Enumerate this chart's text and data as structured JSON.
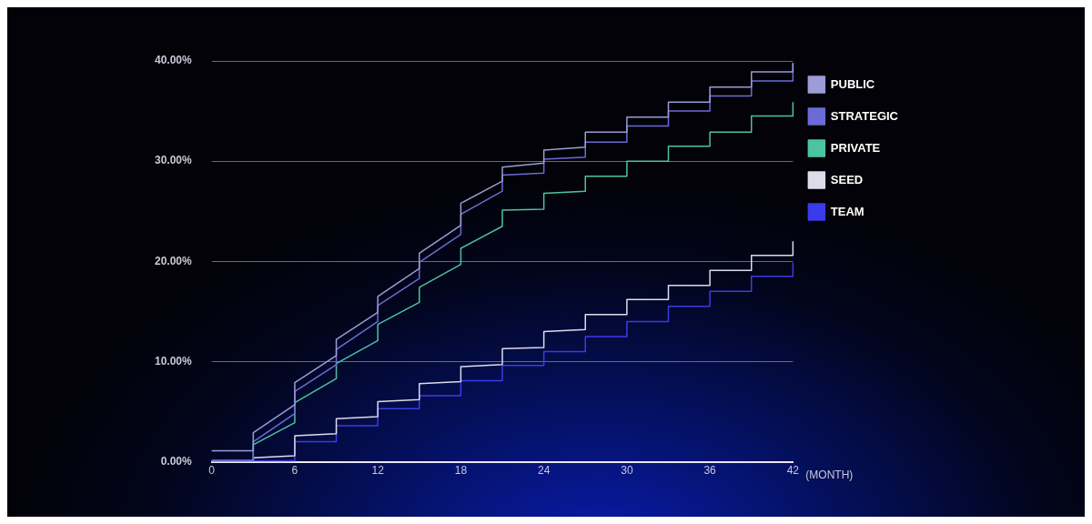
{
  "chart_data": {
    "type": "line",
    "xlabel": "(MONTH)",
    "xlim": [
      0,
      42
    ],
    "xticks": [
      0,
      6,
      12,
      18,
      24,
      30,
      36,
      42
    ],
    "ylim": [
      0,
      40
    ],
    "yticks": [
      {
        "value": 0,
        "label": "0.00%"
      },
      {
        "value": 10,
        "label": "10.00%"
      },
      {
        "value": 20,
        "label": "20.00%"
      },
      {
        "value": 30,
        "label": "30.00%"
      },
      {
        "value": 40,
        "label": "40.00%"
      }
    ],
    "grid": "y",
    "legend": "right",
    "marker": "none",
    "line_style": "solid",
    "series": [
      {
        "name": "PUBLIC",
        "color": "#9c9cd6",
        "x": [
          0,
          3,
          3,
          6,
          6,
          9,
          9,
          12,
          12,
          15,
          15,
          18,
          18,
          21,
          21,
          24,
          24,
          27,
          27,
          30,
          30,
          33,
          33,
          36,
          36,
          39,
          39,
          42,
          42
        ],
        "values": [
          1.1,
          1.1,
          2.9,
          5.7,
          7.9,
          10.6,
          12.2,
          14.9,
          16.5,
          19.3,
          20.8,
          23.6,
          25.8,
          28,
          29.4,
          29.8,
          31.1,
          31.4,
          32.9,
          32.9,
          34.4,
          34.4,
          35.9,
          35.9,
          37.4,
          37.4,
          38.9,
          38.9,
          39.8
        ]
      },
      {
        "name": "STRATEGIC",
        "color": "#6b6bd8",
        "x": [
          0,
          3,
          3,
          6,
          6,
          9,
          9,
          12,
          12,
          15,
          15,
          18,
          18,
          21,
          21,
          24,
          24,
          27,
          27,
          30,
          30,
          33,
          33,
          36,
          36,
          39,
          39,
          42,
          42
        ],
        "values": [
          0.1,
          0.1,
          2,
          4.8,
          7,
          9.7,
          11.2,
          14,
          15.6,
          18.3,
          19.9,
          22.7,
          24.7,
          27,
          28.6,
          28.8,
          30.2,
          30.4,
          31.9,
          31.9,
          33.5,
          33.5,
          35,
          35,
          36.5,
          36.5,
          38,
          38,
          39.8
        ]
      },
      {
        "name": "PRIVATE",
        "color": "#4cc4a2",
        "x": [
          0,
          3,
          3,
          6,
          6,
          9,
          9,
          12,
          12,
          15,
          15,
          18,
          18,
          21,
          21,
          24,
          24,
          27,
          27,
          30,
          30,
          33,
          33,
          36,
          36,
          39,
          39,
          42,
          42
        ],
        "values": [
          0.1,
          0.1,
          1.7,
          3.9,
          5.9,
          8.3,
          9.8,
          12.1,
          13.7,
          15.9,
          17.4,
          19.7,
          21.3,
          23.5,
          25.1,
          25.2,
          26.8,
          27,
          28.5,
          28.5,
          30,
          30,
          31.5,
          31.5,
          32.9,
          32.9,
          34.5,
          34.5,
          35.9
        ]
      },
      {
        "name": "SEED",
        "color": "#dcdcec",
        "x": [
          0,
          3,
          3,
          6,
          6,
          9,
          9,
          12,
          12,
          15,
          15,
          18,
          18,
          21,
          21,
          24,
          24,
          27,
          27,
          30,
          30,
          33,
          33,
          36,
          36,
          39,
          39,
          42,
          42
        ],
        "values": [
          0.1,
          0.1,
          0.4,
          0.6,
          2.6,
          2.8,
          4.3,
          4.5,
          6,
          6.2,
          7.8,
          8,
          9.5,
          9.7,
          11.3,
          11.4,
          13,
          13.2,
          14.7,
          14.7,
          16.2,
          16.2,
          17.6,
          17.6,
          19.1,
          19.1,
          20.6,
          20.6,
          22
        ]
      },
      {
        "name": "TEAM",
        "color": "#3b3bea",
        "x": [
          0,
          6,
          6,
          9,
          9,
          12,
          12,
          15,
          15,
          18,
          18,
          21,
          21,
          24,
          24,
          27,
          27,
          30,
          30,
          33,
          33,
          36,
          36,
          39,
          39,
          42,
          42
        ],
        "values": [
          0.1,
          0.1,
          2,
          2,
          3.6,
          3.6,
          5.3,
          5.3,
          6.6,
          6.6,
          8.1,
          8.1,
          9.6,
          9.6,
          11,
          11,
          12.5,
          12.5,
          14,
          14,
          15.5,
          15.5,
          17,
          17,
          18.5,
          18.5,
          19.9
        ]
      }
    ]
  }
}
